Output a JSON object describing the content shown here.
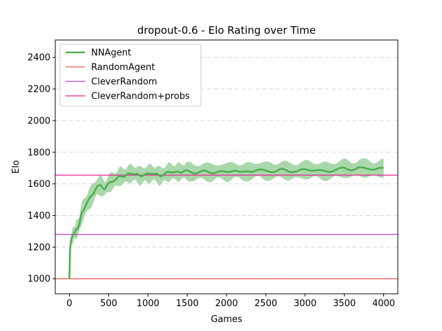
{
  "chart_data": {
    "type": "line",
    "title": "dropout-0.6 - Elo Rating over Time",
    "xlabel": "Games",
    "ylabel": "Elo",
    "xlim": [
      -180,
      4180
    ],
    "ylim": [
      905,
      2510
    ],
    "x_ticks": [
      0,
      500,
      1000,
      1500,
      2000,
      2500,
      3000,
      3500,
      4000
    ],
    "y_ticks": [
      1000,
      1200,
      1400,
      1600,
      1800,
      2000,
      2200,
      2400
    ],
    "grid": "horizontal dashed",
    "legend_position": "top-left",
    "series": [
      {
        "name": "NNAgent",
        "color": "#4caf50",
        "band_color": "#a5d6a7",
        "x": [
          0,
          10,
          20,
          40,
          60,
          80,
          100,
          130,
          160,
          200,
          250,
          300,
          350,
          400,
          450,
          500,
          550,
          600,
          650,
          700,
          750,
          800,
          850,
          900,
          950,
          1000,
          1050,
          1100,
          1150,
          1200,
          1250,
          1300,
          1350,
          1400,
          1450,
          1500,
          1600,
          1700,
          1800,
          1900,
          2000,
          2100,
          2200,
          2300,
          2400,
          2500,
          2600,
          2700,
          2800,
          2900,
          3000,
          3100,
          3200,
          3300,
          3400,
          3500,
          3600,
          3700,
          3800,
          3900,
          4000
        ],
        "y": [
          1000,
          1200,
          1240,
          1270,
          1290,
          1300,
          1320,
          1350,
          1420,
          1460,
          1500,
          1540,
          1580,
          1590,
          1570,
          1600,
          1620,
          1630,
          1650,
          1650,
          1660,
          1670,
          1660,
          1650,
          1660,
          1660,
          1670,
          1660,
          1650,
          1660,
          1670,
          1680,
          1670,
          1675,
          1680,
          1680,
          1670,
          1680,
          1670,
          1680,
          1670,
          1690,
          1670,
          1680,
          1690,
          1680,
          1680,
          1690,
          1680,
          1680,
          1690,
          1690,
          1680,
          1680,
          1690,
          1700,
          1690,
          1700,
          1700,
          1690,
          1700
        ],
        "band_halfwidth": [
          0,
          20,
          30,
          40,
          45,
          50,
          50,
          55,
          60,
          60,
          60,
          60,
          55,
          55,
          50,
          50,
          50,
          50,
          50,
          50,
          50,
          50,
          50,
          50,
          50,
          50,
          50,
          50,
          50,
          50,
          50,
          50,
          50,
          50,
          50,
          50,
          50,
          50,
          50,
          50,
          50,
          50,
          50,
          50,
          50,
          50,
          50,
          50,
          50,
          50,
          50,
          50,
          50,
          50,
          50,
          50,
          50,
          50,
          50,
          50,
          50
        ]
      },
      {
        "name": "RandomAgent",
        "color": "#ef5350",
        "kind": "hline",
        "y": 1000
      },
      {
        "name": "CleverRandom",
        "color": "#ba3cc4",
        "kind": "hline",
        "y": 1280
      },
      {
        "name": "CleverRandom+probs",
        "color": "#e91e8f",
        "kind": "hline",
        "y": 1655
      }
    ]
  }
}
